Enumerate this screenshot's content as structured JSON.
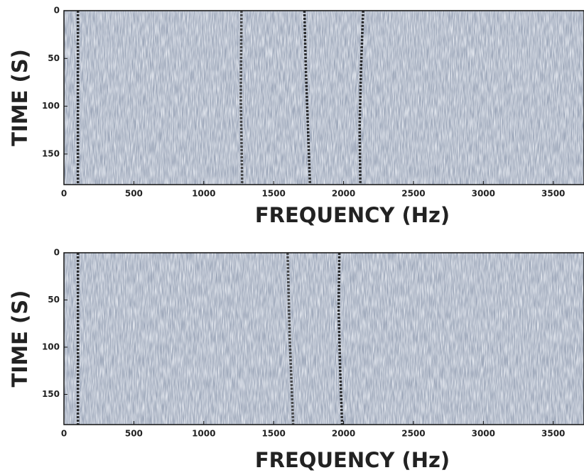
{
  "chart_data": [
    {
      "type": "spectrogram",
      "xlabel": "FREQUENCY (Hz)",
      "ylabel": "TIME (S)",
      "xlim": [
        0,
        3720
      ],
      "ylim": [
        0,
        182
      ],
      "xticks": [
        0,
        500,
        1000,
        1500,
        2000,
        2500,
        3000,
        3500
      ],
      "yticks": [
        0,
        50,
        100,
        150
      ],
      "series": [
        {
          "color": "#111111",
          "x": [
            100,
            100
          ],
          "y": [
            0,
            182
          ]
        },
        {
          "color": "#333333",
          "x": [
            1270,
            1265,
            1275
          ],
          "y": [
            0,
            90,
            182
          ]
        },
        {
          "color": "#111111",
          "x": [
            1720,
            1730,
            1745,
            1760
          ],
          "y": [
            0,
            60,
            120,
            182
          ]
        },
        {
          "color": "#111111",
          "x": [
            2140,
            2125,
            2115,
            2120
          ],
          "y": [
            0,
            60,
            120,
            182
          ]
        }
      ]
    },
    {
      "type": "spectrogram",
      "xlabel": "FREQUENCY (Hz)",
      "ylabel": "TIME (S)",
      "xlim": [
        0,
        3720
      ],
      "ylim": [
        0,
        182
      ],
      "xticks": [
        0,
        500,
        1000,
        1500,
        2000,
        2500,
        3000,
        3500
      ],
      "yticks": [
        0,
        50,
        100,
        150
      ],
      "series": [
        {
          "color": "#111111",
          "x": [
            100,
            100
          ],
          "y": [
            0,
            182
          ]
        },
        {
          "color": "#333333",
          "x": [
            1600,
            1615,
            1640
          ],
          "y": [
            0,
            90,
            182
          ]
        },
        {
          "color": "#111111",
          "x": [
            1970,
            1965,
            1975,
            1990
          ],
          "y": [
            0,
            60,
            120,
            182
          ]
        }
      ]
    }
  ]
}
